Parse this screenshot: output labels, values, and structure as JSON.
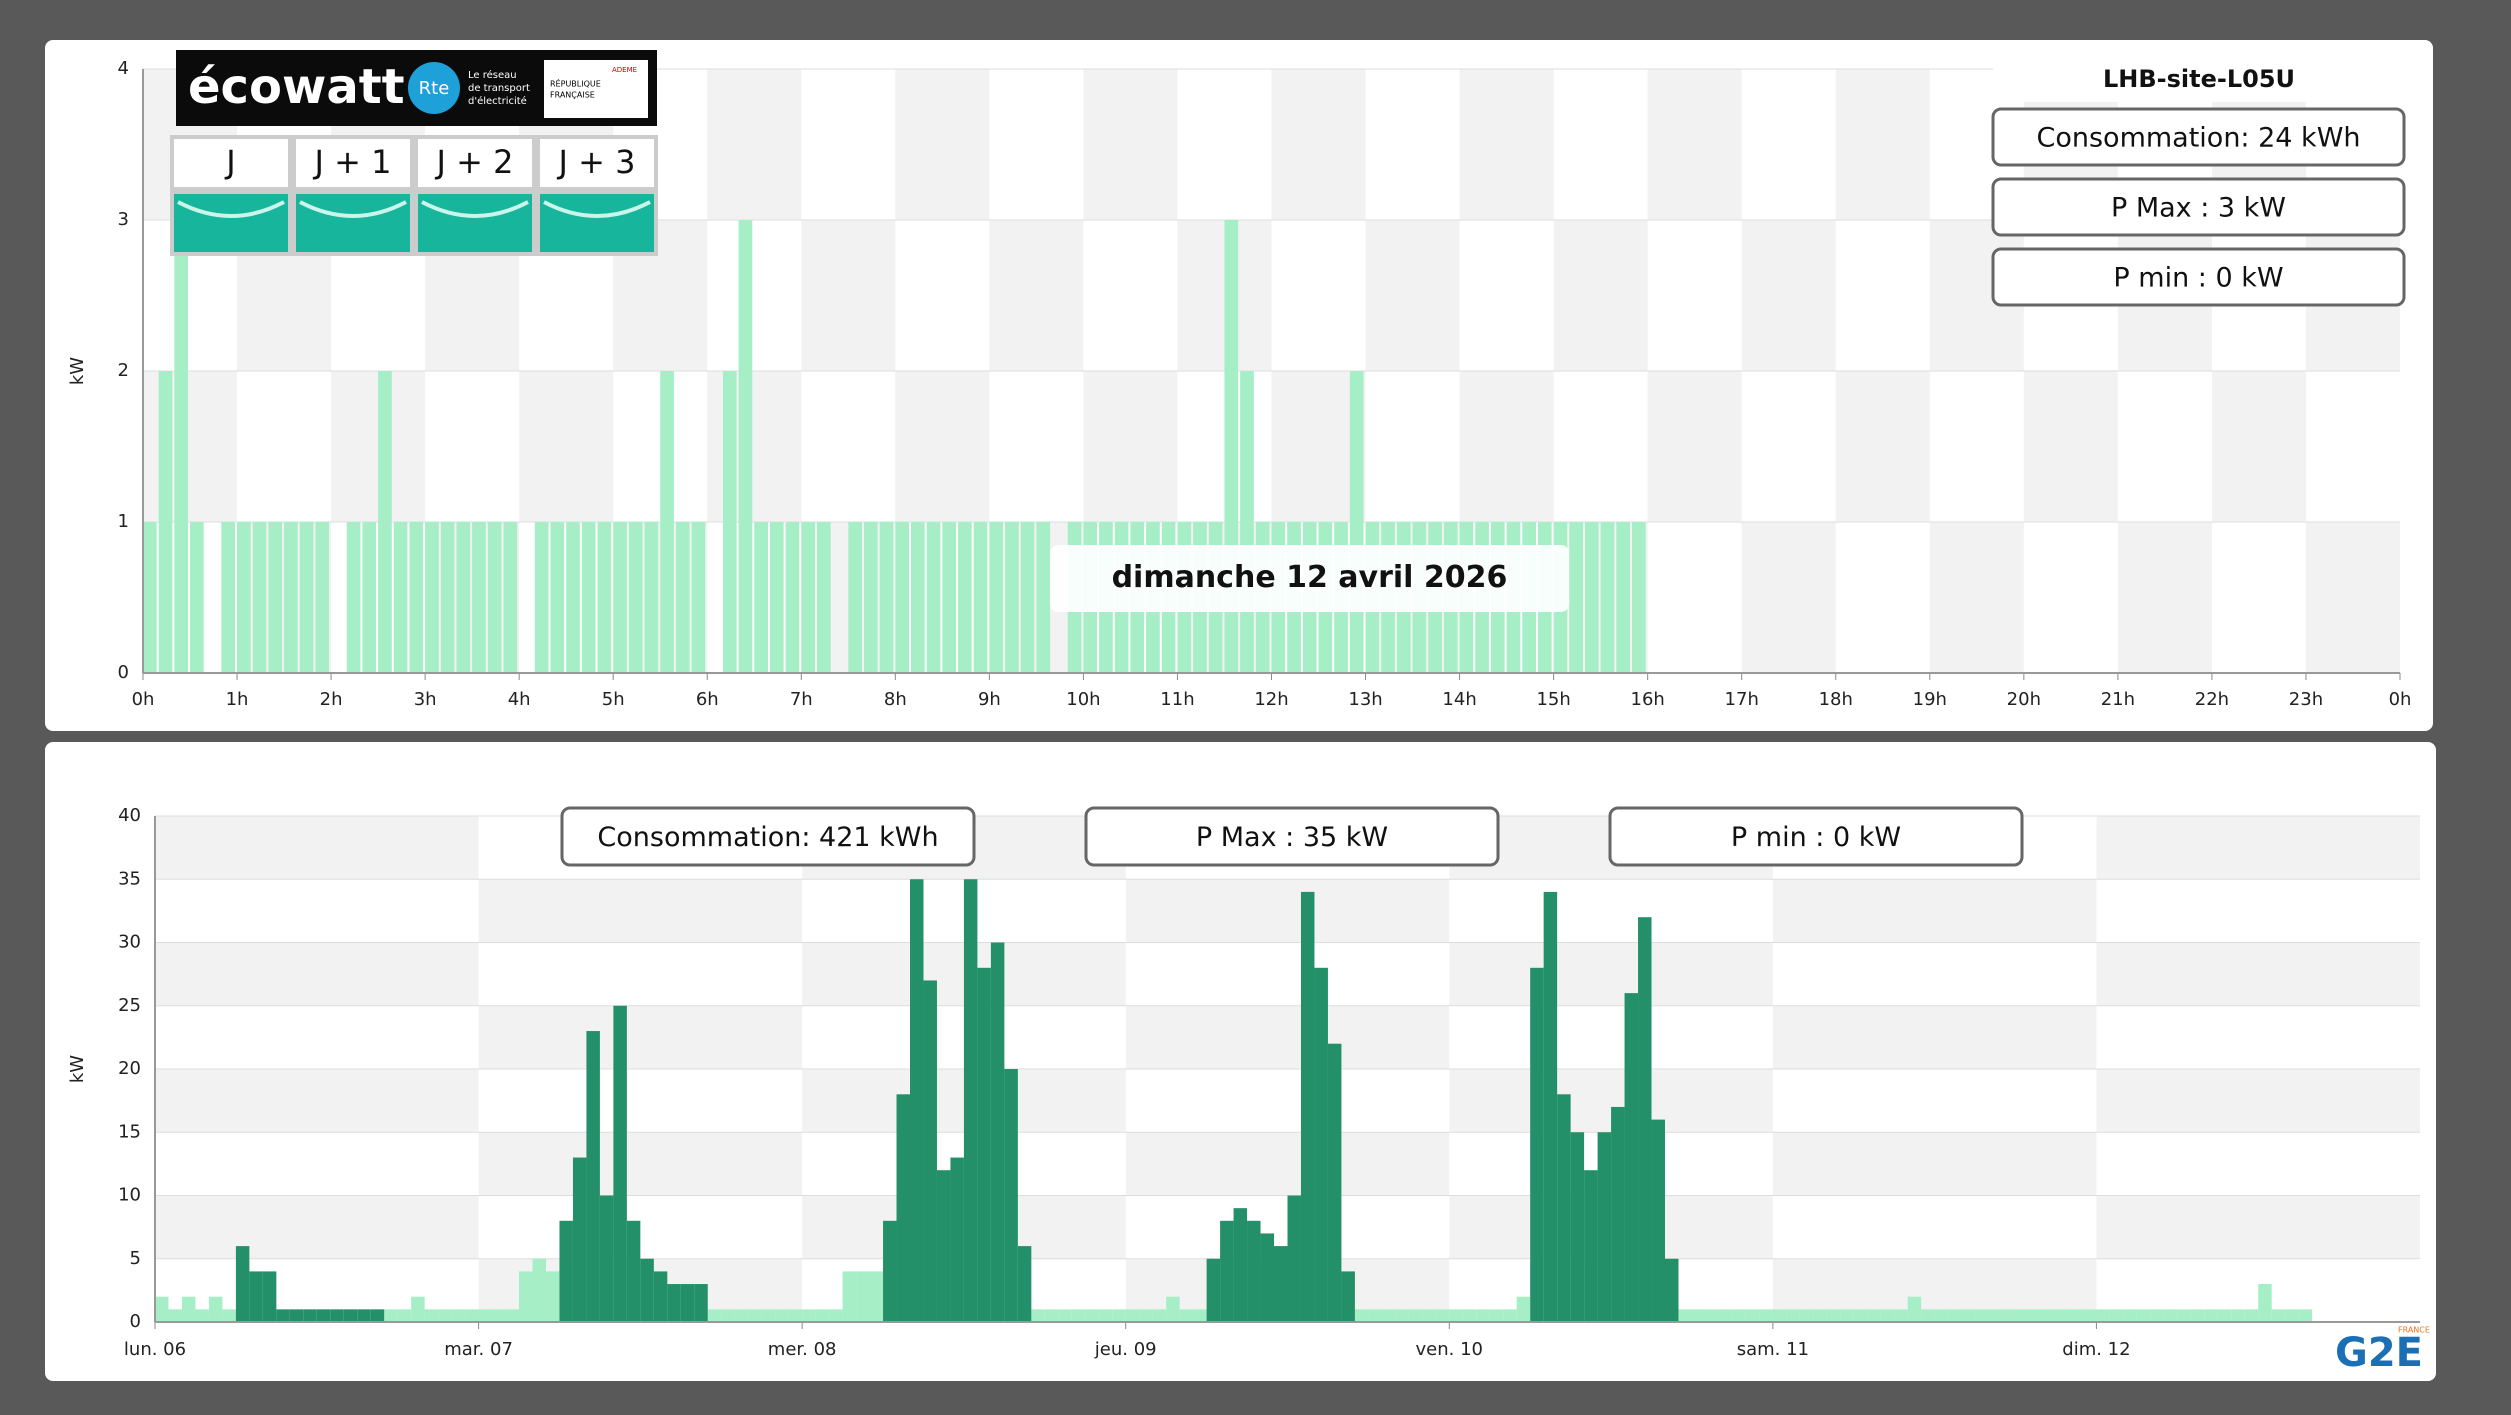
{
  "chart_data": [
    {
      "type": "bar",
      "title": "LHB-site-L05U",
      "annotation": "dimanche 12 avril 2026",
      "ylabel": "kW",
      "stats": [
        "Consommation: 24 kWh",
        "P Max :  3 kW",
        "P min : 0 kW"
      ],
      "xlim": [
        0,
        1440
      ],
      "xticks": [
        {
          "value": 0,
          "label": "0h"
        },
        {
          "value": 60,
          "label": "1h"
        },
        {
          "value": 120,
          "label": "2h"
        },
        {
          "value": 180,
          "label": "3h"
        },
        {
          "value": 240,
          "label": "4h"
        },
        {
          "value": 300,
          "label": "5h"
        },
        {
          "value": 360,
          "label": "6h"
        },
        {
          "value": 420,
          "label": "7h"
        },
        {
          "value": 480,
          "label": "8h"
        },
        {
          "value": 540,
          "label": "9h"
        },
        {
          "value": 600,
          "label": "10h"
        },
        {
          "value": 660,
          "label": "11h"
        },
        {
          "value": 720,
          "label": "12h"
        },
        {
          "value": 780,
          "label": "13h"
        },
        {
          "value": 840,
          "label": "14h"
        },
        {
          "value": 900,
          "label": "15h"
        },
        {
          "value": 960,
          "label": "16h"
        },
        {
          "value": 1020,
          "label": "17h"
        },
        {
          "value": 1080,
          "label": "18h"
        },
        {
          "value": 1140,
          "label": "19h"
        },
        {
          "value": 1200,
          "label": "20h"
        },
        {
          "value": 1260,
          "label": "21h"
        },
        {
          "value": 1320,
          "label": "22h"
        },
        {
          "value": 1380,
          "label": "23h"
        },
        {
          "value": 1440,
          "label": "0h"
        }
      ],
      "ylim": [
        0,
        4
      ],
      "yticks": [
        0,
        1,
        2,
        3,
        4
      ],
      "bar_width": 10,
      "x": [
        0,
        10,
        20,
        30,
        40,
        50,
        60,
        70,
        80,
        90,
        100,
        110,
        120,
        130,
        140,
        150,
        160,
        170,
        180,
        190,
        200,
        210,
        220,
        230,
        240,
        250,
        260,
        270,
        280,
        290,
        300,
        310,
        320,
        330,
        340,
        350,
        360,
        370,
        380,
        390,
        400,
        410,
        420,
        430,
        440,
        450,
        460,
        470,
        480,
        490,
        500,
        510,
        520,
        530,
        540,
        550,
        560,
        570,
        580,
        590,
        600,
        610,
        620,
        630,
        640,
        650,
        660,
        670,
        680,
        690,
        700,
        710,
        720,
        730,
        740,
        750,
        760,
        770,
        780,
        790,
        800,
        810,
        820,
        830,
        840,
        850,
        860,
        870,
        880,
        890,
        900,
        910,
        920,
        930,
        940,
        950
      ],
      "series": [
        {
          "color": "#a6eec6",
          "values": [
            1,
            2,
            3,
            1,
            0,
            1,
            1,
            1,
            1,
            1,
            1,
            1,
            0,
            1,
            1,
            2,
            1,
            1,
            1,
            1,
            1,
            1,
            1,
            1,
            0,
            1,
            1,
            1,
            1,
            1,
            1,
            1,
            1,
            2,
            1,
            1,
            0,
            2,
            3,
            1,
            1,
            1,
            1,
            1,
            0,
            1,
            1,
            1,
            1,
            1,
            1,
            1,
            1,
            1,
            1,
            1,
            1,
            1,
            0,
            1,
            1,
            1,
            1,
            1,
            1,
            1,
            1,
            1,
            1,
            3,
            2,
            1,
            1,
            1,
            1,
            1,
            1,
            2,
            1,
            1,
            1,
            1,
            1,
            1,
            1,
            1,
            1,
            1,
            1,
            1,
            1,
            1,
            1,
            1,
            1,
            1
          ]
        }
      ]
    },
    {
      "type": "bar",
      "ylabel": "kW",
      "stats": [
        "Consommation: 421 kWh",
        "P Max :  35 kW",
        "P min : 0 kW"
      ],
      "xlim": [
        0,
        168
      ],
      "xticks": [
        {
          "value": 0,
          "label": "lun. 06"
        },
        {
          "value": 24,
          "label": "mar. 07"
        },
        {
          "value": 48,
          "label": "mer. 08"
        },
        {
          "value": 72,
          "label": "jeu. 09"
        },
        {
          "value": 96,
          "label": "ven. 10"
        },
        {
          "value": 120,
          "label": "sam. 11"
        },
        {
          "value": 144,
          "label": "dim. 12"
        }
      ],
      "ylim": [
        0,
        40
      ],
      "yticks": [
        0,
        5,
        10,
        15,
        20,
        25,
        30,
        35,
        40
      ],
      "bar_width": 1,
      "x": [
        0,
        1,
        2,
        3,
        4,
        5,
        6,
        7,
        8,
        9,
        10,
        11,
        12,
        13,
        14,
        15,
        16,
        17,
        18,
        19,
        20,
        21,
        22,
        23,
        24,
        25,
        26,
        27,
        28,
        29,
        30,
        31,
        32,
        33,
        34,
        35,
        36,
        37,
        38,
        39,
        40,
        41,
        42,
        43,
        44,
        45,
        46,
        47,
        48,
        49,
        50,
        51,
        52,
        53,
        54,
        55,
        56,
        57,
        58,
        59,
        60,
        61,
        62,
        63,
        64,
        65,
        66,
        67,
        68,
        69,
        70,
        71,
        72,
        73,
        74,
        75,
        76,
        77,
        78,
        79,
        80,
        81,
        82,
        83,
        84,
        85,
        86,
        87,
        88,
        89,
        90,
        91,
        92,
        93,
        94,
        95,
        96,
        97,
        98,
        99,
        100,
        101,
        102,
        103,
        104,
        105,
        106,
        107,
        108,
        109,
        110,
        111,
        112,
        113,
        114,
        115,
        116,
        117,
        118,
        119,
        120,
        121,
        122,
        123,
        124,
        125,
        126,
        127,
        128,
        129,
        130,
        131,
        132,
        133,
        134,
        135,
        136,
        137,
        138,
        139,
        140,
        141,
        142,
        143,
        144,
        145,
        146,
        147,
        148,
        149,
        150,
        151,
        152,
        153,
        154,
        155,
        156,
        157,
        158,
        159
      ],
      "series": [
        {
          "color": "#a6eec6",
          "values": [
            2,
            1,
            2,
            1,
            2,
            1,
            null,
            null,
            null,
            null,
            null,
            null,
            null,
            null,
            null,
            null,
            null,
            1,
            1,
            2,
            1,
            1,
            1,
            1,
            1,
            1,
            1,
            4,
            5,
            4,
            null,
            null,
            null,
            null,
            null,
            null,
            null,
            null,
            null,
            null,
            null,
            1,
            1,
            1,
            1,
            1,
            1,
            1,
            1,
            1,
            1,
            4,
            4,
            4,
            null,
            null,
            null,
            null,
            null,
            null,
            null,
            null,
            null,
            null,
            null,
            1,
            1,
            1,
            1,
            1,
            1,
            1,
            1,
            1,
            1,
            2,
            1,
            1,
            null,
            null,
            null,
            null,
            null,
            null,
            null,
            null,
            null,
            null,
            null,
            1,
            1,
            1,
            1,
            1,
            1,
            1,
            1,
            1,
            1,
            1,
            1,
            2,
            null,
            null,
            null,
            null,
            null,
            null,
            null,
            null,
            null,
            null,
            null,
            1,
            1,
            1,
            1,
            1,
            1,
            1,
            1,
            1,
            1,
            1,
            1,
            1,
            1,
            1,
            1,
            1,
            2,
            1,
            1,
            1,
            1,
            1,
            1,
            1,
            1,
            1,
            1,
            1,
            1,
            1,
            1,
            1,
            1,
            1,
            1,
            1,
            1,
            1,
            1,
            1,
            1,
            1,
            3,
            1,
            1,
            1
          ]
        },
        {
          "color": "#23906a",
          "values": [
            null,
            null,
            null,
            null,
            null,
            null,
            6,
            4,
            4,
            1,
            1,
            1,
            1,
            1,
            1,
            1,
            1,
            null,
            null,
            null,
            null,
            null,
            null,
            null,
            null,
            null,
            null,
            null,
            null,
            null,
            8,
            13,
            23,
            10,
            25,
            8,
            5,
            4,
            3,
            3,
            3,
            null,
            null,
            null,
            null,
            null,
            null,
            null,
            null,
            null,
            null,
            null,
            null,
            null,
            8,
            18,
            35,
            27,
            12,
            13,
            35,
            28,
            30,
            20,
            6,
            null,
            null,
            null,
            null,
            null,
            null,
            null,
            null,
            null,
            null,
            null,
            null,
            null,
            5,
            8,
            9,
            8,
            7,
            6,
            10,
            34,
            28,
            22,
            4,
            null,
            null,
            null,
            null,
            null,
            null,
            null,
            null,
            null,
            null,
            null,
            null,
            null,
            28,
            34,
            18,
            15,
            12,
            15,
            17,
            26,
            32,
            16,
            5,
            null,
            null,
            null,
            null,
            null,
            null,
            null,
            null,
            null,
            null,
            null,
            null,
            null,
            null,
            null,
            null,
            null,
            null,
            null,
            null,
            null,
            null,
            null,
            null,
            null,
            null,
            null,
            null,
            null,
            null,
            null,
            null,
            null,
            null,
            null,
            null,
            null,
            null,
            null,
            null,
            null,
            null,
            null,
            null,
            null,
            null,
            null
          ]
        }
      ]
    }
  ],
  "ecowatt": {
    "logo": "écowatt",
    "rte": "Rte",
    "rte_text": [
      "Le réseau",
      "de transport",
      "d'électricité"
    ],
    "gov": [
      "RÉPUBLIQUE",
      "FRANÇAISE"
    ],
    "ademe": "ADEME",
    "days": [
      "J",
      "J + 1",
      "J + 2",
      "J + 3"
    ]
  },
  "brand": {
    "logo": "G2E",
    "country": "FRANCE"
  }
}
